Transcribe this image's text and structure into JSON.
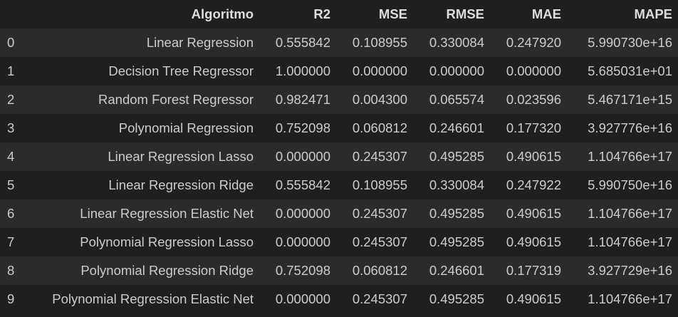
{
  "table": {
    "columns": [
      "",
      "Algoritmo",
      "R2",
      "MSE",
      "RMSE",
      "MAE",
      "MAPE"
    ],
    "rows": [
      {
        "index": "0",
        "algoritmo": "Linear Regression",
        "r2": "0.555842",
        "mse": "0.108955",
        "rmse": "0.330084",
        "mae": "0.247920",
        "mape": "5.990730e+16"
      },
      {
        "index": "1",
        "algoritmo": "Decision Tree Regressor",
        "r2": "1.000000",
        "mse": "0.000000",
        "rmse": "0.000000",
        "mae": "0.000000",
        "mape": "5.685031e+01"
      },
      {
        "index": "2",
        "algoritmo": "Random Forest Regressor",
        "r2": "0.982471",
        "mse": "0.004300",
        "rmse": "0.065574",
        "mae": "0.023596",
        "mape": "5.467171e+15"
      },
      {
        "index": "3",
        "algoritmo": "Polynomial Regression",
        "r2": "0.752098",
        "mse": "0.060812",
        "rmse": "0.246601",
        "mae": "0.177320",
        "mape": "3.927776e+16"
      },
      {
        "index": "4",
        "algoritmo": "Linear Regression Lasso",
        "r2": "0.000000",
        "mse": "0.245307",
        "rmse": "0.495285",
        "mae": "0.490615",
        "mape": "1.104766e+17"
      },
      {
        "index": "5",
        "algoritmo": "Linear Regression Ridge",
        "r2": "0.555842",
        "mse": "0.108955",
        "rmse": "0.330084",
        "mae": "0.247922",
        "mape": "5.990750e+16"
      },
      {
        "index": "6",
        "algoritmo": "Linear Regression Elastic Net",
        "r2": "0.000000",
        "mse": "0.245307",
        "rmse": "0.495285",
        "mae": "0.490615",
        "mape": "1.104766e+17"
      },
      {
        "index": "7",
        "algoritmo": "Polynomial Regression Lasso",
        "r2": "0.000000",
        "mse": "0.245307",
        "rmse": "0.495285",
        "mae": "0.490615",
        "mape": "1.104766e+17"
      },
      {
        "index": "8",
        "algoritmo": "Polynomial Regression Ridge",
        "r2": "0.752098",
        "mse": "0.060812",
        "rmse": "0.246601",
        "mae": "0.177319",
        "mape": "3.927729e+16"
      },
      {
        "index": "9",
        "algoritmo": "Polynomial Regression Elastic Net",
        "r2": "0.000000",
        "mse": "0.245307",
        "rmse": "0.495285",
        "mae": "0.490615",
        "mape": "1.104766e+17"
      }
    ]
  },
  "colors": {
    "background": "#1f1f1f",
    "row_stripe": "#2b2b2b",
    "text": "#cccccc",
    "header_text": "#dddddd"
  }
}
